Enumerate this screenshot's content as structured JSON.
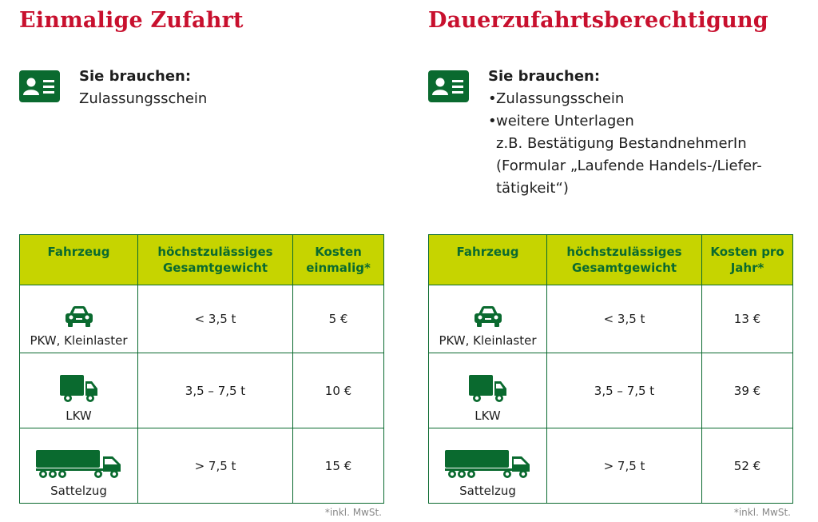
{
  "left": {
    "heading": "Einmalige Zufahrt",
    "needs_title": "Sie brauchen:",
    "needs_text": "Zulassungsschein",
    "table": {
      "headers": [
        "Fahrzeug",
        "höchstzulässiges Gesamtgewicht",
        "Kosten einmalig*"
      ],
      "rows": [
        {
          "vehicle": "PKW, Kleinlaster",
          "icon": "car-icon",
          "weight": "< 3,5 t",
          "cost": "5 €"
        },
        {
          "vehicle": "LKW",
          "icon": "truck-icon",
          "weight": "3,5 – 7,5 t",
          "cost": "10 €"
        },
        {
          "vehicle": "Sattelzug",
          "icon": "semi-truck-icon",
          "weight": "> 7,5 t",
          "cost": "15 €"
        }
      ]
    },
    "note": "*inkl. MwSt."
  },
  "right": {
    "heading": "Dauerzufahrtsberechtigung",
    "needs_title": "Sie brauchen:",
    "needs_items": [
      "Zulassungsschein",
      "weitere Unterlagen"
    ],
    "needs_sub": [
      "z.B. Bestätigung BestandnehmerIn",
      "(Formular „Laufende Handels-/Liefer-",
      "tätigkeit“)"
    ],
    "table": {
      "headers": [
        "Fahrzeug",
        "höchstzulässiges Gesamtgewicht",
        "Kosten pro Jahr*"
      ],
      "rows": [
        {
          "vehicle": "PKW, Kleinlaster",
          "icon": "car-icon",
          "weight": "< 3,5 t",
          "cost": "13 €"
        },
        {
          "vehicle": "LKW",
          "icon": "truck-icon",
          "weight": "3,5 – 7,5 t",
          "cost": "39 €"
        },
        {
          "vehicle": "Sattelzug",
          "icon": "semi-truck-icon",
          "weight": "> 7,5 t",
          "cost": "52 €"
        }
      ]
    },
    "note": "*inkl. MwSt."
  },
  "colors": {
    "heading_red": "#c8102e",
    "brand_green": "#0a6a2f",
    "header_lime": "#c6d400"
  }
}
